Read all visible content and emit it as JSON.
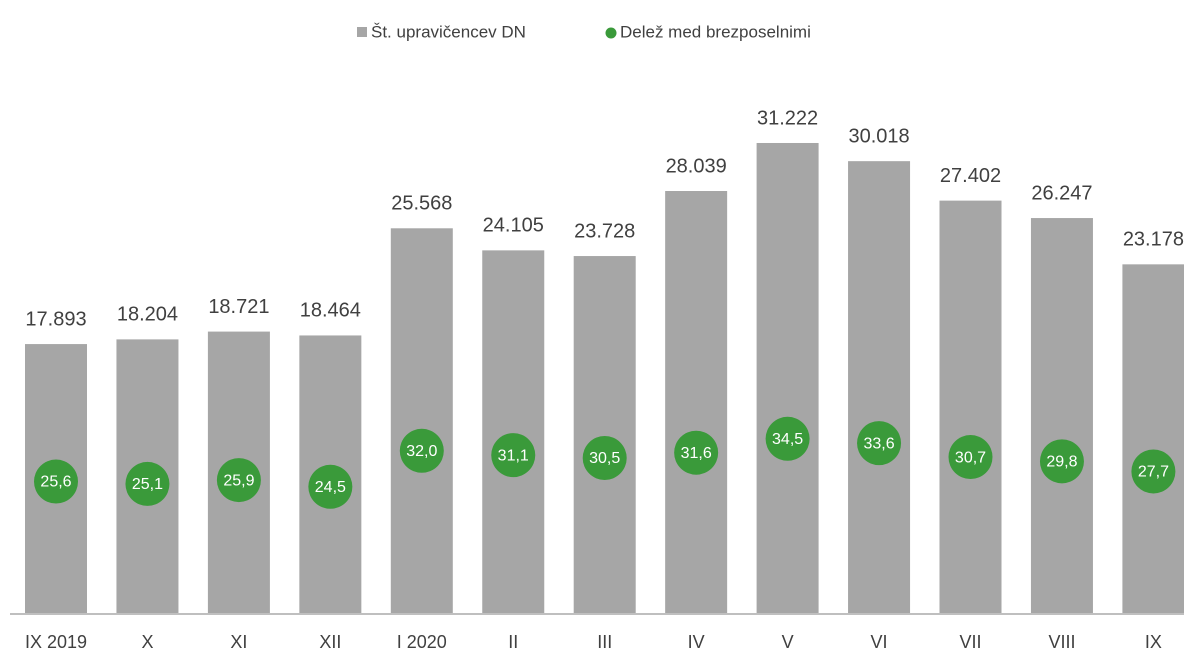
{
  "chart_data": {
    "type": "bar",
    "categories": [
      "IX 2019",
      "X",
      "XI",
      "XII",
      "I 2020",
      "II",
      "III",
      "IV",
      "V",
      "VI",
      "VII",
      "VIII",
      "IX"
    ],
    "series": [
      {
        "name": "Št. upravičencev DN",
        "color": "#a6a6a6",
        "type": "bar",
        "values": [
          17893,
          18204,
          18721,
          18464,
          25568,
          24105,
          23728,
          28039,
          31222,
          30018,
          27402,
          26247,
          23178
        ],
        "value_labels": [
          "17.893",
          "18.204",
          "18.721",
          "18.464",
          "25.568",
          "24.105",
          "23.728",
          "28.039",
          "31.222",
          "30.018",
          "27.402",
          "26.247",
          "23.178"
        ]
      },
      {
        "name": "Delež med brezposelnimi",
        "color": "#3a9a3a",
        "type": "dot",
        "axis": "y2",
        "values": [
          25.6,
          25.1,
          25.9,
          24.5,
          32.0,
          31.1,
          30.5,
          31.6,
          34.5,
          33.6,
          30.7,
          29.8,
          27.7
        ],
        "value_labels": [
          "25,6",
          "25,1",
          "25,9",
          "24,5",
          "32,0",
          "31,1",
          "30,5",
          "31,6",
          "34,5",
          "33,6",
          "30,7",
          "29,8",
          "27,7"
        ]
      }
    ],
    "ylim": [
      0,
      35000
    ],
    "y2lim": [
      -2,
      108
    ],
    "legend": "top"
  }
}
